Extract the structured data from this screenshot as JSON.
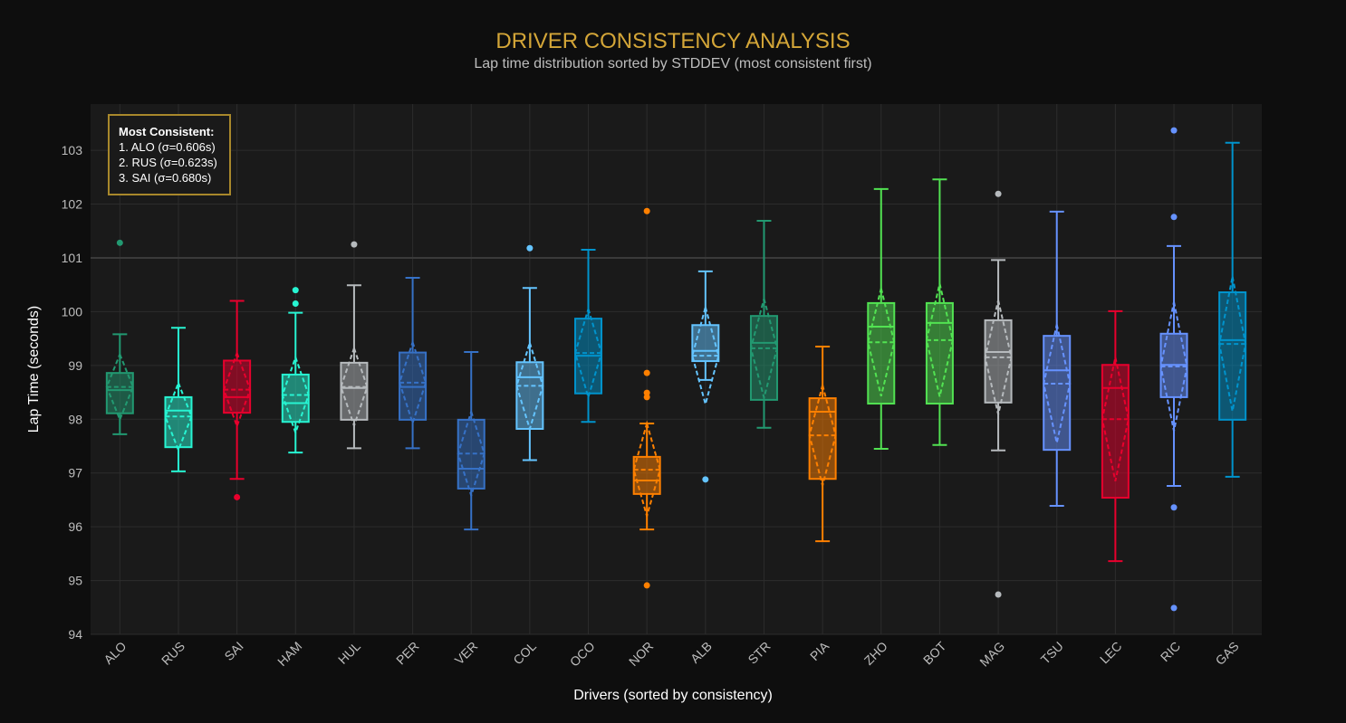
{
  "chart_data": {
    "type": "box",
    "title": "DRIVER CONSISTENCY ANALYSIS",
    "subtitle": "Lap time distribution sorted by STDDEV (most consistent first)",
    "xlabel": "Drivers (sorted by consistency)",
    "ylabel": "Lap Time (seconds)",
    "ylim": [
      94,
      103.86
    ],
    "yticks": [
      94,
      95,
      96,
      97,
      98,
      99,
      100,
      101,
      102,
      103
    ],
    "grid": true,
    "annotation": {
      "heading": "Most Consistent:",
      "lines": [
        "1. ALO (σ=0.606s)",
        "2. RUS (σ=0.623s)",
        "3. SAI (σ=0.680s)"
      ],
      "placement": "top-left"
    },
    "colors": {
      "background": "#0e0e0e",
      "plot_background": "#1a1a1a",
      "title": "#d4a638"
    },
    "series": [
      {
        "name": "ALO",
        "color": "#229971",
        "lowerfence": 97.72,
        "q1": 98.11,
        "median": 98.54,
        "q3": 98.86,
        "upperfence": 99.58,
        "mean": 98.6,
        "sd": 0.606,
        "outliers": [
          101.28
        ]
      },
      {
        "name": "RUS",
        "color": "#27F4D2",
        "lowerfence": 97.03,
        "q1": 97.48,
        "median": 98.16,
        "q3": 98.41,
        "upperfence": 99.7,
        "mean": 98.05,
        "sd": 0.623,
        "outliers": []
      },
      {
        "name": "SAI",
        "color": "#E8002D",
        "lowerfence": 96.89,
        "q1": 98.12,
        "median": 98.41,
        "q3": 99.09,
        "upperfence": 100.2,
        "mean": 98.55,
        "sd": 0.68,
        "outliers": [
          96.55
        ]
      },
      {
        "name": "HAM",
        "color": "#27F4D2",
        "lowerfence": 97.38,
        "q1": 97.95,
        "median": 98.3,
        "q3": 98.83,
        "upperfence": 99.98,
        "mean": 98.45,
        "sd": 0.7,
        "outliers": [
          100.4,
          100.15
        ]
      },
      {
        "name": "HUL",
        "color": "#B6BABD",
        "lowerfence": 97.46,
        "q1": 97.99,
        "median": 98.58,
        "q3": 99.05,
        "upperfence": 100.49,
        "mean": 98.6,
        "sd": 0.72,
        "outliers": [
          101.25
        ]
      },
      {
        "name": "PER",
        "color": "#3671C6",
        "lowerfence": 97.46,
        "q1": 97.99,
        "median": 98.6,
        "q3": 99.24,
        "upperfence": 100.63,
        "mean": 98.68,
        "sd": 0.75,
        "outliers": []
      },
      {
        "name": "VER",
        "color": "#3671C6",
        "lowerfence": 95.95,
        "q1": 96.71,
        "median": 97.08,
        "q3": 97.99,
        "upperfence": 99.25,
        "mean": 97.36,
        "sd": 0.78,
        "outliers": []
      },
      {
        "name": "COL",
        "color": "#64C4FF",
        "lowerfence": 97.24,
        "q1": 97.82,
        "median": 98.78,
        "q3": 99.06,
        "upperfence": 100.44,
        "mean": 98.62,
        "sd": 0.8,
        "outliers": [
          101.18
        ]
      },
      {
        "name": "OCO",
        "color": "#0093CC",
        "lowerfence": 97.95,
        "q1": 98.48,
        "median": 99.18,
        "q3": 99.87,
        "upperfence": 101.15,
        "mean": 99.23,
        "sd": 0.82,
        "outliers": []
      },
      {
        "name": "NOR",
        "color": "#FF8000",
        "lowerfence": 95.95,
        "q1": 96.61,
        "median": 96.86,
        "q3": 97.3,
        "upperfence": 97.92,
        "mean": 97.06,
        "sd": 0.86,
        "outliers": [
          101.87,
          98.86,
          98.49,
          98.41,
          94.91
        ]
      },
      {
        "name": "ALB",
        "color": "#64C4FF",
        "lowerfence": 98.73,
        "q1": 99.08,
        "median": 99.27,
        "q3": 99.75,
        "upperfence": 100.75,
        "mean": 99.18,
        "sd": 0.9,
        "outliers": [
          96.88
        ]
      },
      {
        "name": "STR",
        "color": "#229971",
        "lowerfence": 97.84,
        "q1": 98.36,
        "median": 99.42,
        "q3": 99.92,
        "upperfence": 101.69,
        "mean": 99.32,
        "sd": 0.92,
        "outliers": []
      },
      {
        "name": "PIA",
        "color": "#FF8000",
        "lowerfence": 95.73,
        "q1": 96.89,
        "median": 98.14,
        "q3": 98.39,
        "upperfence": 99.35,
        "mean": 97.7,
        "sd": 0.93,
        "outliers": []
      },
      {
        "name": "ZHO",
        "color": "#52E252",
        "lowerfence": 97.45,
        "q1": 98.29,
        "median": 99.72,
        "q3": 100.16,
        "upperfence": 102.28,
        "mean": 99.43,
        "sd": 1.0,
        "outliers": []
      },
      {
        "name": "BOT",
        "color": "#52E252",
        "lowerfence": 97.52,
        "q1": 98.29,
        "median": 99.79,
        "q3": 100.16,
        "upperfence": 102.46,
        "mean": 99.47,
        "sd": 1.05,
        "outliers": []
      },
      {
        "name": "MAG",
        "color": "#B6BABD",
        "lowerfence": 97.42,
        "q1": 98.31,
        "median": 99.25,
        "q3": 99.84,
        "upperfence": 100.96,
        "mean": 99.15,
        "sd": 1.06,
        "outliers": [
          102.19,
          94.74
        ]
      },
      {
        "name": "TSU",
        "color": "#6692FF",
        "lowerfence": 96.39,
        "q1": 97.43,
        "median": 98.91,
        "q3": 99.55,
        "upperfence": 101.86,
        "mean": 98.66,
        "sd": 1.1,
        "outliers": []
      },
      {
        "name": "LEC",
        "color": "#E8002D",
        "lowerfence": 95.36,
        "q1": 96.54,
        "median": 98.58,
        "q3": 99.01,
        "upperfence": 100.01,
        "mean": 98.0,
        "sd": 1.15,
        "outliers": []
      },
      {
        "name": "RIC",
        "color": "#6692FF",
        "lowerfence": 96.76,
        "q1": 98.41,
        "median": 99.01,
        "q3": 99.59,
        "upperfence": 101.22,
        "mean": 98.98,
        "sd": 1.2,
        "outliers": [
          103.37,
          101.76,
          96.36,
          94.49
        ]
      },
      {
        "name": "GAS",
        "color": "#0093CC",
        "lowerfence": 96.93,
        "q1": 97.99,
        "median": 99.47,
        "q3": 100.36,
        "upperfence": 103.14,
        "mean": 99.4,
        "sd": 1.25,
        "outliers": []
      }
    ]
  }
}
